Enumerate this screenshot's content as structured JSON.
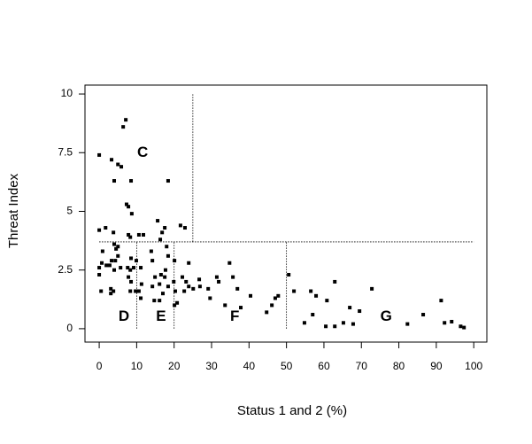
{
  "chart_data": {
    "type": "scatter",
    "x_label": "Status 1 and 2 (%)",
    "y_label": "Threat Index",
    "xlim": [
      -3.8,
      103.5
    ],
    "ylim": [
      -0.57,
      10.38
    ],
    "xticks": [
      0,
      10,
      20,
      30,
      40,
      50,
      60,
      70,
      80,
      90,
      100
    ],
    "yticks": [
      0,
      2.5,
      5,
      7.5,
      10
    ],
    "color": "#000000",
    "reference_lines": [
      {
        "x": [
          25,
          25
        ],
        "y": [
          3.7,
          10
        ]
      },
      {
        "x": [
          0,
          100
        ],
        "y": [
          3.7,
          3.7
        ]
      },
      {
        "x": [
          10,
          10
        ],
        "y": [
          0,
          3.7
        ]
      },
      {
        "x": [
          20,
          20
        ],
        "y": [
          0,
          3.7
        ]
      },
      {
        "x": [
          50,
          50
        ],
        "y": [
          0,
          3.7
        ]
      }
    ],
    "annotations": [
      {
        "text": "C",
        "x": 11.6,
        "y": 7.5
      },
      {
        "text": "D",
        "x": 6.6,
        "y": 0.5
      },
      {
        "text": "E",
        "x": 16.5,
        "y": 0.5
      },
      {
        "text": "F",
        "x": 36.2,
        "y": 0.5
      },
      {
        "text": "G",
        "x": 76.6,
        "y": 0.5
      }
    ],
    "x": [
      0,
      7.1,
      6.4,
      3.3,
      5.0,
      5.9,
      4.0,
      8.5,
      18.4,
      7.3,
      7.8,
      8.7,
      0,
      1.7,
      3.8,
      7.8,
      8.3,
      10.6,
      11.8,
      15.6,
      17.5,
      16.8,
      21.7,
      22.9,
      16.3,
      4.0,
      5.0,
      4.5,
      18.0,
      13.9,
      0.9,
      5.0,
      8.5,
      18.4,
      9.9,
      0.7,
      3.3,
      4.3,
      14.2,
      20.1,
      23.9,
      34.8,
      1.9,
      2.8,
      0,
      7.6,
      9.2,
      5.7,
      11.1,
      8.3,
      4.0,
      17.7,
      0,
      35.7,
      14.9,
      16.5,
      17.5,
      22.2,
      31.4,
      50.6,
      7.8,
      26.7,
      8.5,
      19.9,
      23.2,
      31.9,
      62.9,
      11.3,
      16.1,
      18.4,
      14.2,
      23.9,
      26.9,
      36.9,
      72.8,
      25.1,
      0.5,
      3.8,
      3.1,
      9.7,
      10.6,
      8.3,
      17.0,
      20.3,
      22.7,
      3.1,
      29.1,
      29.6,
      52.0,
      56.5,
      57.9,
      40.4,
      47.8,
      47.0,
      11.1,
      16.1,
      14.7,
      20.8,
      60.8,
      91.3,
      20.1,
      33.6,
      46.1,
      37.8,
      66.9,
      69.5,
      44.7,
      57.0,
      86.5,
      65.2,
      54.8,
      67.8,
      82.3,
      92.2,
      94.1,
      60.5,
      62.9,
      96.5,
      97.4
    ],
    "values": [
      7.4,
      8.9,
      8.6,
      7.2,
      7.0,
      6.9,
      6.3,
      6.3,
      6.3,
      5.3,
      5.2,
      4.9,
      4.2,
      4.3,
      4.1,
      4.0,
      3.9,
      4.0,
      4.0,
      4.6,
      4.3,
      4.1,
      4.4,
      4.3,
      3.8,
      3.6,
      3.5,
      3.4,
      3.5,
      3.3,
      3.3,
      3.1,
      3.0,
      3.1,
      2.9,
      2.8,
      2.9,
      2.9,
      2.9,
      2.9,
      2.8,
      2.8,
      2.7,
      2.7,
      2.6,
      2.6,
      2.6,
      2.6,
      2.6,
      2.5,
      2.5,
      2.5,
      2.3,
      2.2,
      2.2,
      2.3,
      2.2,
      2.2,
      2.2,
      2.3,
      2.2,
      2.1,
      2.0,
      2.0,
      2.0,
      2.0,
      2.0,
      1.9,
      1.9,
      1.8,
      1.8,
      1.8,
      1.8,
      1.7,
      1.7,
      1.7,
      1.6,
      1.6,
      1.7,
      1.6,
      1.6,
      1.6,
      1.5,
      1.6,
      1.6,
      1.5,
      1.7,
      1.3,
      1.6,
      1.6,
      1.4,
      1.4,
      1.4,
      1.3,
      1.3,
      1.2,
      1.2,
      1.1,
      1.2,
      1.2,
      1.0,
      1.0,
      1.0,
      0.9,
      0.9,
      0.75,
      0.7,
      0.6,
      0.6,
      0.25,
      0.25,
      0.2,
      0.2,
      0.25,
      0.3,
      0.1,
      0.1,
      0.1,
      0.05
    ]
  }
}
